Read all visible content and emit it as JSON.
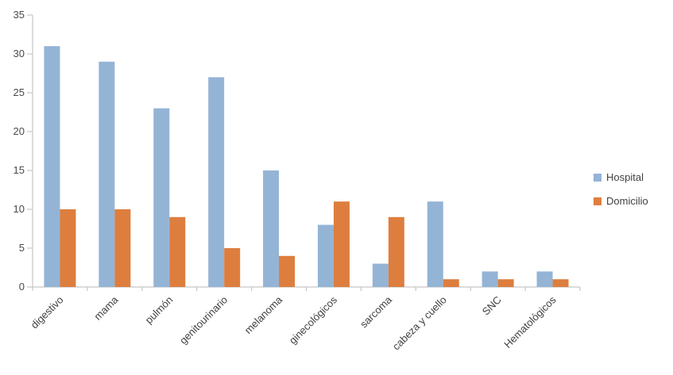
{
  "chart_data": {
    "type": "bar",
    "title": "",
    "xlabel": "",
    "ylabel": "",
    "categories": [
      "digestivo",
      "mama",
      "pulmón",
      "genitourinario",
      "melanoma",
      "ginecológicos",
      "sarcoma",
      "cabeza y cuello",
      "SNC",
      "Hematológicos"
    ],
    "series": [
      {
        "name": "Hospital",
        "color": "#94B4D6",
        "values": [
          31,
          29,
          23,
          27,
          15,
          8,
          3,
          11,
          2,
          2
        ]
      },
      {
        "name": "Domicilio",
        "color": "#DD7E3E",
        "values": [
          10,
          10,
          9,
          5,
          4,
          11,
          9,
          1,
          1,
          1
        ]
      }
    ],
    "ylim": [
      0,
      35
    ],
    "yticks": [
      0,
      5,
      10,
      15,
      20,
      25,
      30,
      35
    ],
    "grid": false,
    "legend_position": "right",
    "axis_color": "#C6C6C6",
    "ytick_label_color": "#4A4A4A",
    "category_label_color": "#3F3F3F"
  }
}
